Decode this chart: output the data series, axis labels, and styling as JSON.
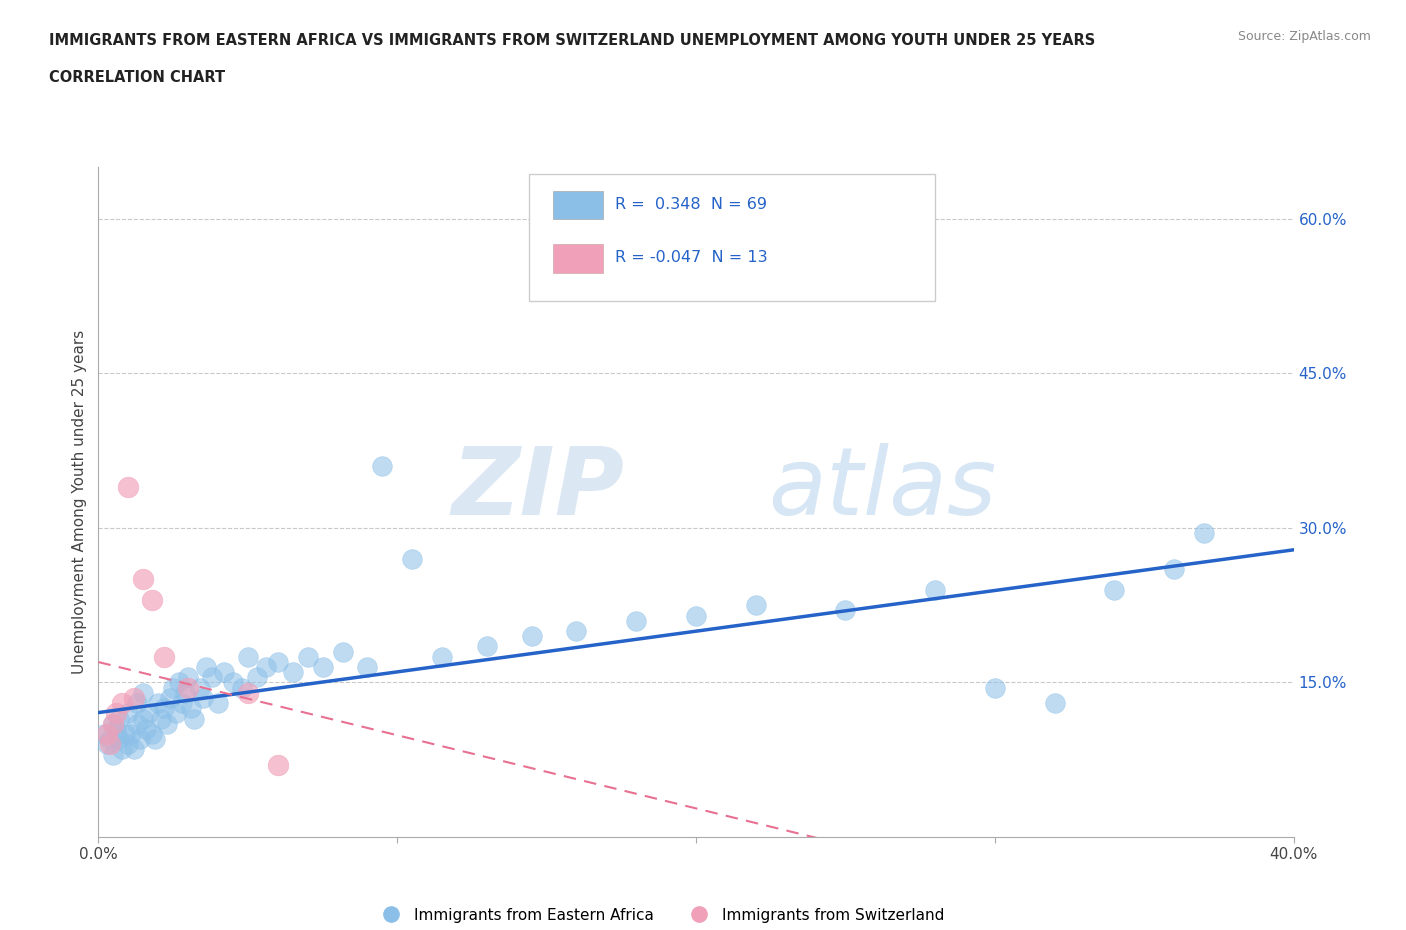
{
  "title_line1": "IMMIGRANTS FROM EASTERN AFRICA VS IMMIGRANTS FROM SWITZERLAND UNEMPLOYMENT AMONG YOUTH UNDER 25 YEARS",
  "title_line2": "CORRELATION CHART",
  "source": "Source: ZipAtlas.com",
  "ylabel": "Unemployment Among Youth under 25 years",
  "xlim": [
    0.0,
    0.4
  ],
  "ylim": [
    0.0,
    0.65
  ],
  "xticks": [
    0.0,
    0.1,
    0.2,
    0.3,
    0.4
  ],
  "xtick_labels": [
    "0.0%",
    "",
    "",
    "",
    "40.0%"
  ],
  "ytick_positions": [
    0.15,
    0.3,
    0.45,
    0.6
  ],
  "ytick_labels": [
    "15.0%",
    "30.0%",
    "45.0%",
    "60.0%"
  ],
  "blue_color": "#8BBFE8",
  "pink_color": "#F0A0B8",
  "blue_line_color": "#2563C9",
  "pink_line_color": "#E87090",
  "legend_blue_R": "0.348",
  "legend_blue_N": "69",
  "legend_pink_R": "-0.047",
  "legend_pink_N": "13",
  "legend_label_blue": "Immigrants from Eastern Africa",
  "legend_label_pink": "Immigrants from Switzerland",
  "watermark_zip": "ZIP",
  "watermark_atlas": "atlas",
  "blue_scatter_x": [
    0.002,
    0.003,
    0.004,
    0.005,
    0.005,
    0.006,
    0.007,
    0.007,
    0.008,
    0.009,
    0.01,
    0.01,
    0.011,
    0.012,
    0.013,
    0.013,
    0.014,
    0.015,
    0.015,
    0.016,
    0.017,
    0.018,
    0.019,
    0.02,
    0.021,
    0.022,
    0.023,
    0.024,
    0.025,
    0.026,
    0.027,
    0.028,
    0.029,
    0.03,
    0.031,
    0.032,
    0.034,
    0.035,
    0.036,
    0.038,
    0.04,
    0.042,
    0.045,
    0.048,
    0.05,
    0.053,
    0.056,
    0.06,
    0.065,
    0.07,
    0.075,
    0.082,
    0.09,
    0.095,
    0.105,
    0.115,
    0.13,
    0.145,
    0.16,
    0.18,
    0.2,
    0.22,
    0.25,
    0.28,
    0.3,
    0.32,
    0.34,
    0.36,
    0.37
  ],
  "blue_scatter_y": [
    0.1,
    0.09,
    0.095,
    0.11,
    0.08,
    0.105,
    0.095,
    0.115,
    0.085,
    0.1,
    0.09,
    0.12,
    0.1,
    0.085,
    0.11,
    0.13,
    0.095,
    0.115,
    0.14,
    0.105,
    0.12,
    0.1,
    0.095,
    0.13,
    0.115,
    0.125,
    0.11,
    0.135,
    0.145,
    0.12,
    0.15,
    0.13,
    0.14,
    0.155,
    0.125,
    0.115,
    0.145,
    0.135,
    0.165,
    0.155,
    0.13,
    0.16,
    0.15,
    0.145,
    0.175,
    0.155,
    0.165,
    0.17,
    0.16,
    0.175,
    0.165,
    0.18,
    0.165,
    0.36,
    0.27,
    0.175,
    0.185,
    0.195,
    0.2,
    0.21,
    0.215,
    0.225,
    0.22,
    0.24,
    0.145,
    0.13,
    0.24,
    0.26,
    0.295
  ],
  "pink_scatter_x": [
    0.003,
    0.004,
    0.005,
    0.006,
    0.008,
    0.01,
    0.012,
    0.015,
    0.018,
    0.022,
    0.03,
    0.05,
    0.06
  ],
  "pink_scatter_y": [
    0.1,
    0.09,
    0.11,
    0.12,
    0.13,
    0.34,
    0.135,
    0.25,
    0.23,
    0.175,
    0.145,
    0.14,
    0.07
  ],
  "background_color": "#FFFFFF",
  "grid_color": "#BBBBBB"
}
